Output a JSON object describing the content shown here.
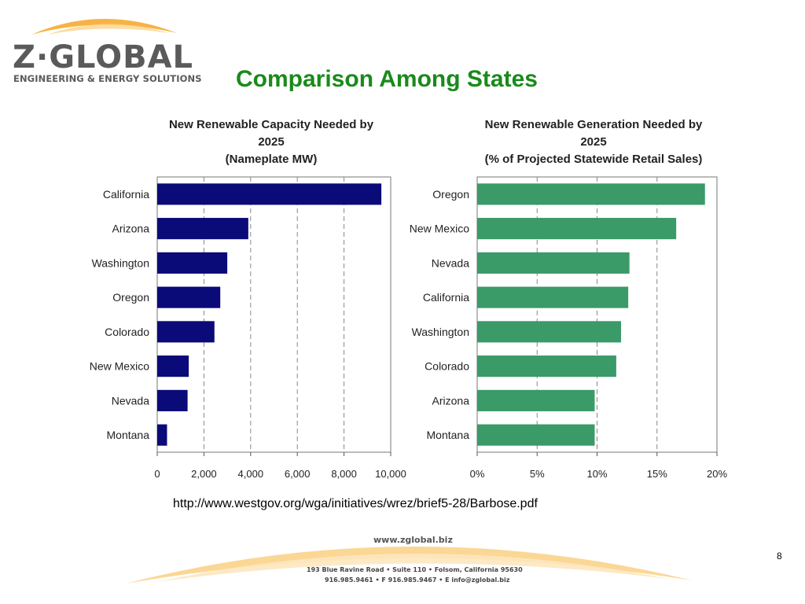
{
  "logo": {
    "main": "Z·GLOBAL",
    "subtitle": "ENGINEERING & ENERGY SOLUTIONS"
  },
  "slide": {
    "title": "Comparison Among States",
    "source_url": "http://www.westgov.org/wga/initiatives/wrez/brief5-28/Barbose.pdf",
    "page_number": "8"
  },
  "footer": {
    "website": "www.zglobal.biz",
    "address": "193 Blue Ravine Road • Suite 110 • Folsom, California 95630",
    "contact": "916.985.9461 • F 916.985.9467 • E info@zglobal.biz"
  },
  "colors": {
    "title_green": "#1a8a1a",
    "left_bar": "#0a0a78",
    "right_bar": "#3a9a68",
    "logo_orange": "#f5a623"
  },
  "chart_data": [
    {
      "type": "bar",
      "orientation": "horizontal",
      "title_line1": "New Renewable Capacity Needed by 2025",
      "title_line2": "(Nameplate MW)",
      "categories": [
        "California",
        "Arizona",
        "Washington",
        "Oregon",
        "Colorado",
        "New Mexico",
        "Nevada",
        "Montana"
      ],
      "values": [
        9600,
        3900,
        3000,
        2700,
        2450,
        1350,
        1300,
        420
      ],
      "xlim": [
        0,
        10000
      ],
      "ticks": [
        0,
        2000,
        4000,
        6000,
        8000,
        10000
      ],
      "tick_labels": [
        "0",
        "2,000",
        "4,000",
        "6,000",
        "8,000",
        "10,000"
      ],
      "grid": "vertical-dashed",
      "color": "#0a0a78"
    },
    {
      "type": "bar",
      "orientation": "horizontal",
      "title_line1": "New Renewable Generation Needed by 2025",
      "title_line2": "(% of Projected Statewide Retail Sales)",
      "categories": [
        "Oregon",
        "New Mexico",
        "Nevada",
        "California",
        "Washington",
        "Colorado",
        "Arizona",
        "Montana"
      ],
      "values": [
        19.0,
        16.6,
        12.7,
        12.6,
        12.0,
        11.6,
        9.8,
        9.8
      ],
      "xlim": [
        0,
        20
      ],
      "ticks": [
        0,
        5,
        10,
        15,
        20
      ],
      "tick_labels": [
        "0%",
        "5%",
        "10%",
        "15%",
        "20%"
      ],
      "grid": "vertical-dashed",
      "color": "#3a9a68"
    }
  ]
}
